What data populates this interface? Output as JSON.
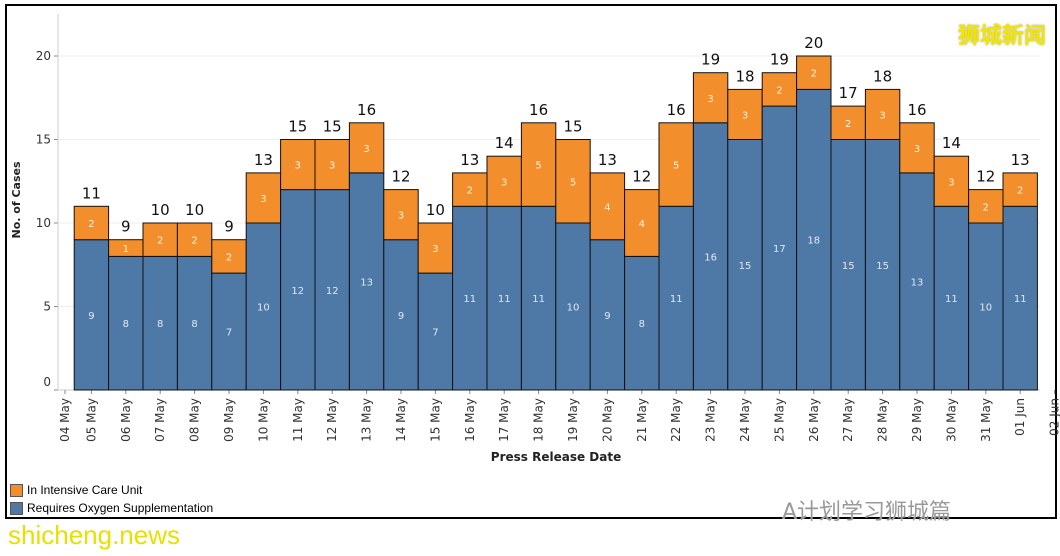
{
  "chart_data": {
    "type": "bar",
    "stacked": true,
    "xlabel": "Press Release Date",
    "ylabel": "No. of Cases",
    "ylim": [
      0,
      22
    ],
    "yticks": [
      0,
      5,
      10,
      15,
      20
    ],
    "grid": "horizontal",
    "legend_position": "bottom-left",
    "axis_labels": [
      "04 May",
      "05 May",
      "06 May",
      "07 May",
      "08 May",
      "09 May",
      "10 May",
      "11 May",
      "12 May",
      "13 May",
      "14 May",
      "15 May",
      "16 May",
      "17 May",
      "18 May",
      "19 May",
      "20 May",
      "21 May",
      "22 May",
      "23 May",
      "24 May",
      "25 May",
      "26 May",
      "27 May",
      "28 May",
      "29 May",
      "30 May",
      "31 May",
      "01 Jun",
      "02 Jun"
    ],
    "categories": [
      "05 May",
      "06 May",
      "07 May",
      "08 May",
      "09 May",
      "10 May",
      "11 May",
      "12 May",
      "13 May",
      "14 May",
      "15 May",
      "16 May",
      "17 May",
      "18 May",
      "19 May",
      "20 May",
      "21 May",
      "22 May",
      "23 May",
      "24 May",
      "25 May",
      "26 May",
      "27 May",
      "28 May",
      "29 May",
      "30 May",
      "31 May",
      "01 Jun"
    ],
    "series": [
      {
        "name": "Requires Oxygen Supplementation",
        "color": "#4e79a7",
        "values": [
          9,
          8,
          8,
          8,
          7,
          10,
          12,
          12,
          13,
          9,
          7,
          11,
          11,
          11,
          10,
          9,
          8,
          11,
          16,
          15,
          17,
          18,
          15,
          15,
          13,
          11,
          10,
          11
        ]
      },
      {
        "name": "In Intensive Care Unit",
        "color": "#f28e2b",
        "values": [
          2,
          1,
          2,
          2,
          2,
          3,
          3,
          3,
          3,
          3,
          3,
          2,
          3,
          5,
          5,
          4,
          4,
          5,
          3,
          3,
          2,
          2,
          2,
          3,
          3,
          3,
          2,
          2
        ]
      }
    ],
    "totals": [
      11,
      9,
      10,
      10,
      9,
      13,
      15,
      15,
      16,
      12,
      10,
      13,
      14,
      16,
      15,
      13,
      12,
      16,
      19,
      18,
      19,
      20,
      17,
      18,
      16,
      14,
      12,
      13
    ]
  },
  "watermarks": {
    "top_right": "狮城新闻",
    "bottom_left": "shicheng.news",
    "bottom_right": "A计划学习狮城篇"
  }
}
